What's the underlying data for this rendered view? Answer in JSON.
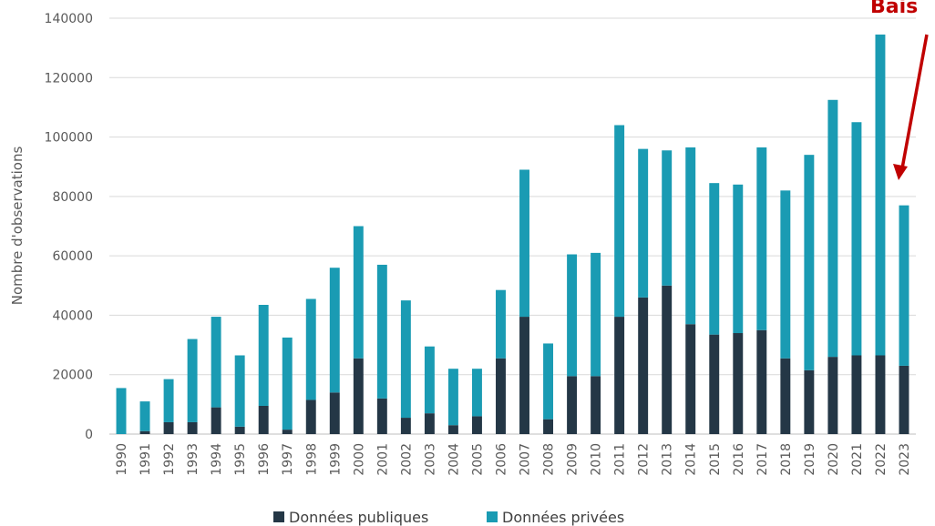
{
  "chart_data": {
    "type": "bar",
    "stacked": true,
    "categories": [
      "1990",
      "1991",
      "1992",
      "1993",
      "1994",
      "1995",
      "1996",
      "1997",
      "1998",
      "1999",
      "2000",
      "2001",
      "2002",
      "2003",
      "2004",
      "2005",
      "2006",
      "2007",
      "2008",
      "2009",
      "2010",
      "2011",
      "2012",
      "2013",
      "2014",
      "2015",
      "2016",
      "2017",
      "2018",
      "2019",
      "2020",
      "2021",
      "2022",
      "2023"
    ],
    "series": [
      {
        "name": "Données publiques",
        "color": "#243746",
        "values": [
          0,
          1000,
          4000,
          4000,
          9000,
          2500,
          9500,
          1500,
          11500,
          14000,
          25500,
          12000,
          5500,
          7000,
          3000,
          6000,
          25500,
          39500,
          5000,
          19500,
          19500,
          39500,
          46000,
          50000,
          37000,
          33500,
          34000,
          35000,
          25500,
          21500,
          26000,
          26500,
          26500,
          23000
        ]
      },
      {
        "name": "Données privées",
        "color": "#1a9bb3",
        "values": [
          15500,
          10000,
          14500,
          28000,
          30500,
          24000,
          34000,
          31000,
          34000,
          42000,
          44500,
          45000,
          39500,
          22500,
          19000,
          16000,
          23000,
          49500,
          25500,
          41000,
          41500,
          64500,
          50000,
          45500,
          59500,
          51000,
          50000,
          61500,
          56500,
          72500,
          86500,
          78500,
          108000,
          54000
        ]
      }
    ],
    "title": "",
    "xlabel": "",
    "ylabel": "Nombre d'observations",
    "ylim": [
      0,
      140000
    ],
    "yticks": [
      "0",
      "20000",
      "40000",
      "60000",
      "80000",
      "100000",
      "120000",
      "140000"
    ],
    "grid": true,
    "legend": "bottom",
    "annotation": {
      "text": "Bais",
      "color": "#c00000",
      "target": "2023"
    }
  }
}
